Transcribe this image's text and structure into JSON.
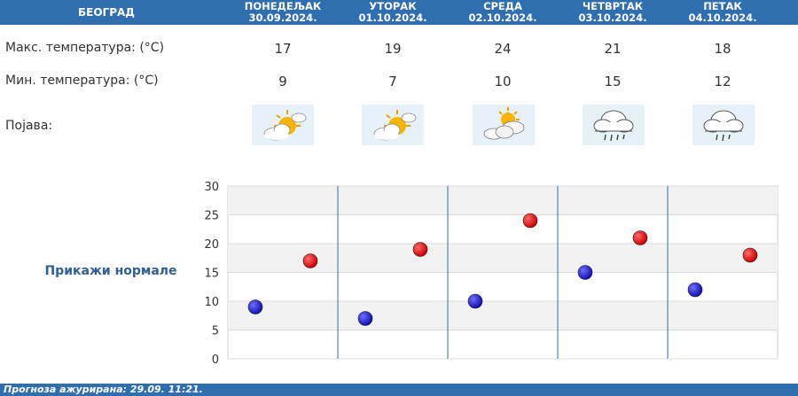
{
  "city": "БЕОГРАД",
  "days": [
    {
      "name": "ПОНЕДЕЉАК",
      "date": "30.09.2024.",
      "max": "17",
      "min": "9",
      "icon": "sun-behind-cloud-icon"
    },
    {
      "name": "УТОРАК",
      "date": "01.10.2024.",
      "max": "19",
      "min": "7",
      "icon": "sun-behind-cloud-icon"
    },
    {
      "name": "СРЕДА",
      "date": "02.10.2024.",
      "max": "24",
      "min": "10",
      "icon": "partly-cloudy-icon"
    },
    {
      "name": "ЧЕТВРТАК",
      "date": "03.10.2024.",
      "max": "21",
      "min": "15",
      "icon": "rain-cloud-icon"
    },
    {
      "name": "ПЕТАК",
      "date": "04.10.2024.",
      "max": "18",
      "min": "12",
      "icon": "rain-cloud-icon"
    }
  ],
  "labels": {
    "max": "Макс. температура: (°C)",
    "min": "Мин. температура: (°C)",
    "phenomenon": "Појава:"
  },
  "show_normals": "Прикажи нормале",
  "footer": "Прогноза ажурирана:  29.09.  11:21.",
  "colors": {
    "header": "#2f6fb0",
    "max_point": "#cc0000",
    "min_point": "#1010b0",
    "divider": "#2f6fb0"
  },
  "chart_data": {
    "type": "scatter",
    "categories": [
      "ПОНЕДЕЉАК",
      "УТОРАК",
      "СРЕДА",
      "ЧЕТВРТАК",
      "ПЕТАК"
    ],
    "series": [
      {
        "values": [
          9,
          7,
          10,
          15,
          12
        ],
        "color": "#1010b0"
      },
      {
        "values": [
          17,
          19,
          24,
          21,
          18
        ],
        "color": "#cc0000"
      }
    ],
    "yticks": [
      0,
      5,
      10,
      15,
      20,
      25,
      30
    ],
    "ylim": [
      0,
      30
    ],
    "grid": true
  }
}
